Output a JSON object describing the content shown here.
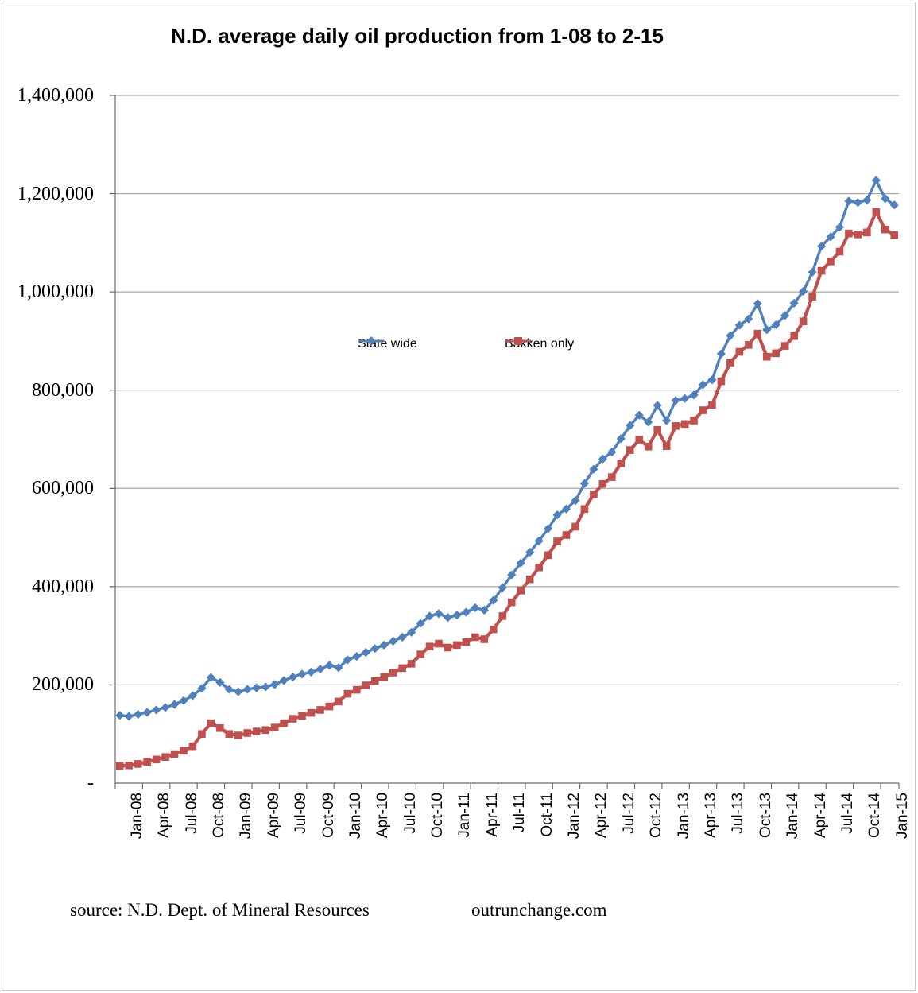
{
  "title": "N.D. average daily oil production from 1-08 to 2-15",
  "source": {
    "left_text": "source: N.D. Dept. of Mineral Resources",
    "right_text": "outrunchange.com"
  },
  "colors": {
    "statewide": "#4f81bd",
    "bakken": "#c0504d",
    "gridline": "#949494",
    "axis": "#6a6a6a",
    "frame": "#c9c9c9",
    "text": "#000000"
  },
  "chart_data": {
    "type": "line",
    "title": "N.D. average daily oil production from 1-08 to 2-15",
    "xlabel": "",
    "ylabel": "",
    "grid": "horizontal",
    "legend_position": "inside-center-upper",
    "y_axis": {
      "min": 0,
      "max": 1400000,
      "step": 200000,
      "tick_labels": [
        "1,400,000",
        "1,200,000",
        "1,000,000",
        "800,000",
        "600,000",
        "400,000",
        "200,000",
        "-"
      ]
    },
    "x_tick_labels": [
      "Jan-08",
      "Apr-08",
      "Jul-08",
      "Oct-08",
      "Jan-09",
      "Apr-09",
      "Jul-09",
      "Oct-09",
      "Jan-10",
      "Apr-10",
      "Jul-10",
      "Oct-10",
      "Jan-11",
      "Apr-11",
      "Jul-11",
      "Oct-11",
      "Jan-12",
      "Apr-12",
      "Jul-12",
      "Oct-12",
      "Jan-13",
      "Apr-13",
      "Jul-13",
      "Oct-13",
      "Jan-14",
      "Apr-14",
      "Jul-14",
      "Oct-14",
      "Jan-15"
    ],
    "x_months": [
      "Jan-08",
      "Feb-08",
      "Mar-08",
      "Apr-08",
      "May-08",
      "Jun-08",
      "Jul-08",
      "Aug-08",
      "Sep-08",
      "Oct-08",
      "Nov-08",
      "Dec-08",
      "Jan-09",
      "Feb-09",
      "Mar-09",
      "Apr-09",
      "May-09",
      "Jun-09",
      "Jul-09",
      "Aug-09",
      "Sep-09",
      "Oct-09",
      "Nov-09",
      "Dec-09",
      "Jan-10",
      "Feb-10",
      "Mar-10",
      "Apr-10",
      "May-10",
      "Jun-10",
      "Jul-10",
      "Aug-10",
      "Sep-10",
      "Oct-10",
      "Nov-10",
      "Dec-10",
      "Jan-11",
      "Feb-11",
      "Mar-11",
      "Apr-11",
      "May-11",
      "Jun-11",
      "Jul-11",
      "Aug-11",
      "Sep-11",
      "Oct-11",
      "Nov-11",
      "Dec-11",
      "Jan-12",
      "Feb-12",
      "Mar-12",
      "Apr-12",
      "May-12",
      "Jun-12",
      "Jul-12",
      "Aug-12",
      "Sep-12",
      "Oct-12",
      "Nov-12",
      "Dec-12",
      "Jan-13",
      "Feb-13",
      "Mar-13",
      "Apr-13",
      "May-13",
      "Jun-13",
      "Jul-13",
      "Aug-13",
      "Sep-13",
      "Oct-13",
      "Nov-13",
      "Dec-13",
      "Jan-14",
      "Feb-14",
      "Mar-14",
      "Apr-14",
      "May-14",
      "Jun-14",
      "Jul-14",
      "Aug-14",
      "Sep-14",
      "Oct-14",
      "Nov-14",
      "Dec-14",
      "Jan-15",
      "Feb-15"
    ],
    "series": [
      {
        "name": "State wide",
        "marker": "diamond",
        "color": "#4f81bd",
        "values": [
          138000,
          136000,
          140000,
          144000,
          149000,
          154000,
          160000,
          168000,
          178000,
          193000,
          215000,
          205000,
          191000,
          186000,
          191000,
          194000,
          196000,
          201000,
          209000,
          216000,
          222000,
          226000,
          232000,
          240000,
          235000,
          251000,
          258000,
          266000,
          274000,
          281000,
          289000,
          297000,
          307000,
          325000,
          340000,
          345000,
          337000,
          342000,
          348000,
          357000,
          352000,
          372000,
          398000,
          424000,
          448000,
          470000,
          493000,
          518000,
          546000,
          558000,
          575000,
          610000,
          639000,
          660000,
          674000,
          701000,
          728000,
          749000,
          735000,
          769000,
          738000,
          779000,
          783000,
          790000,
          811000,
          821000,
          874000,
          911000,
          932000,
          945000,
          976000,
          923000,
          933000,
          952000,
          977000,
          1001000,
          1040000,
          1093000,
          1112000,
          1132000,
          1185000,
          1182000,
          1187000,
          1227000,
          1190000,
          1177000
        ]
      },
      {
        "name": "Bakken only",
        "marker": "square",
        "color": "#c0504d",
        "values": [
          35000,
          36000,
          39000,
          43000,
          48000,
          53000,
          59000,
          66000,
          75000,
          100000,
          122000,
          112000,
          100000,
          97000,
          102000,
          105000,
          108000,
          113000,
          122000,
          131000,
          137000,
          143000,
          149000,
          156000,
          166000,
          182000,
          190000,
          199000,
          208000,
          216000,
          225000,
          234000,
          243000,
          262000,
          278000,
          284000,
          276000,
          281000,
          287000,
          297000,
          293000,
          313000,
          340000,
          368000,
          392000,
          415000,
          439000,
          464000,
          492000,
          505000,
          522000,
          558000,
          588000,
          609000,
          623000,
          651000,
          678000,
          699000,
          685000,
          719000,
          686000,
          727000,
          731000,
          738000,
          759000,
          770000,
          818000,
          856000,
          878000,
          892000,
          915000,
          868000,
          875000,
          890000,
          910000,
          940000,
          990000,
          1043000,
          1062000,
          1082000,
          1119000,
          1117000,
          1121000,
          1163000,
          1127000,
          1116000
        ]
      }
    ]
  }
}
